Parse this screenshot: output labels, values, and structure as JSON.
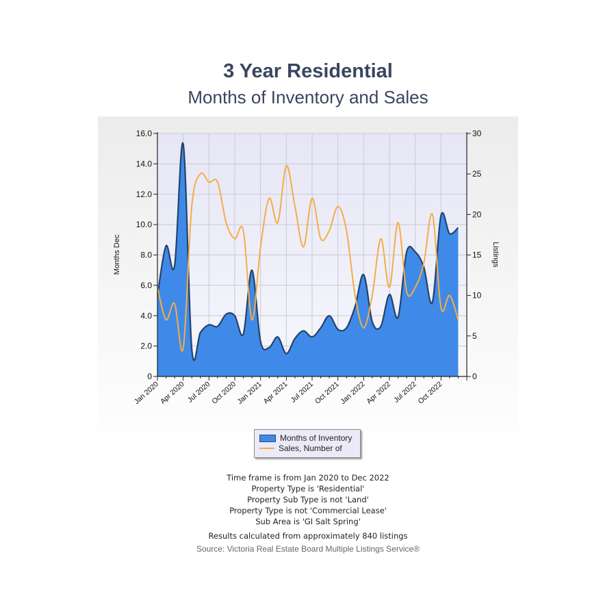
{
  "chart_data": {
    "type": "area+line",
    "title": "3 Year Residential",
    "subtitle": "Months of Inventory and Sales",
    "left_axis": {
      "label": "Months Dec",
      "ylim": [
        0,
        16
      ],
      "ticks": [
        "0",
        "2.0",
        "4.0",
        "6.0",
        "8.0",
        "10.0",
        "12.0",
        "14.0",
        "16.0"
      ]
    },
    "right_axis": {
      "label": "Listings",
      "ylim": [
        0,
        30
      ],
      "ticks": [
        "0",
        "5",
        "10",
        "15",
        "20",
        "25",
        "30"
      ]
    },
    "x_tick_labels": [
      "Jan 2020",
      "Apr 2020",
      "Jul 2020",
      "Oct 2020",
      "Jan 2021",
      "Apr 2021",
      "Jul 2021",
      "Oct 2021",
      "Jan 2022",
      "Apr 2022",
      "Jul 2022",
      "Oct 2022"
    ],
    "months": [
      "Jan 2020",
      "Feb 2020",
      "Mar 2020",
      "Apr 2020",
      "May 2020",
      "Jun 2020",
      "Jul 2020",
      "Aug 2020",
      "Sep 2020",
      "Oct 2020",
      "Nov 2020",
      "Dec 2020",
      "Jan 2021",
      "Feb 2021",
      "Mar 2021",
      "Apr 2021",
      "May 2021",
      "Jun 2021",
      "Jul 2021",
      "Aug 2021",
      "Sep 2021",
      "Oct 2021",
      "Nov 2021",
      "Dec 2021",
      "Jan 2022",
      "Feb 2022",
      "Mar 2022",
      "Apr 2022",
      "May 2022",
      "Jun 2022",
      "Jul 2022",
      "Aug 2022",
      "Sep 2022",
      "Oct 2022",
      "Nov 2022",
      "Dec 2022"
    ],
    "grid": true,
    "legend_position": "bottom-center",
    "series": [
      {
        "name": "Months of Inventory",
        "type": "area",
        "axis": "left",
        "color": "#3f8ae8",
        "values": [
          5.3,
          8.6,
          7.3,
          15.3,
          1.8,
          2.9,
          3.4,
          3.3,
          4.1,
          4.0,
          2.8,
          7.0,
          2.3,
          1.9,
          2.6,
          1.5,
          2.5,
          3.0,
          2.6,
          3.2,
          4.0,
          3.1,
          3.2,
          4.6,
          6.7,
          3.6,
          3.3,
          5.4,
          3.9,
          8.2,
          8.2,
          7.2,
          4.9,
          10.6,
          9.4,
          9.8
        ]
      },
      {
        "name": "Sales, Number of",
        "type": "line",
        "axis": "right",
        "color": "#f4ad45",
        "values": [
          11,
          7,
          9,
          3.5,
          21,
          25,
          24,
          24,
          19,
          17,
          18,
          7,
          16,
          22,
          19,
          26,
          21,
          16,
          22,
          17,
          18,
          21,
          18,
          10,
          6,
          10,
          17,
          11,
          19,
          10.5,
          11,
          14,
          20,
          8.5,
          10,
          7
        ]
      }
    ]
  },
  "legend": {
    "inventory_label": "Months of Inventory",
    "sales_label": "Sales, Number of"
  },
  "footnotes": {
    "lines": [
      "Time frame is from Jan 2020 to Dec 2022",
      "Property Type is 'Residential'",
      "Property Sub Type is not 'Land'",
      "Property Type is not 'Commercial Lease'",
      "Sub Area is 'GI Salt Spring'"
    ],
    "results": "Results calculated from approximately 840 listings",
    "source": "Source: Victoria Real Estate Board Multiple Listings Service®"
  }
}
